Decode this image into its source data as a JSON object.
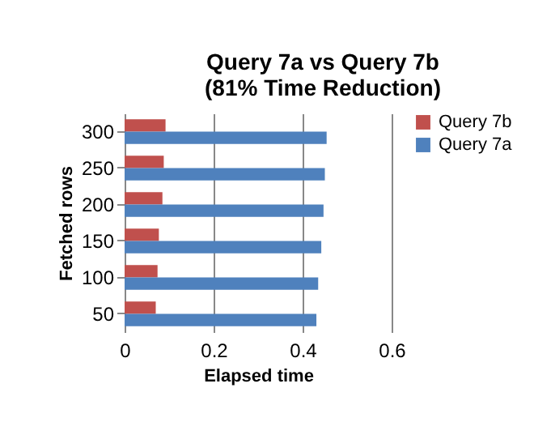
{
  "chart_data": {
    "type": "bar",
    "orientation": "horizontal",
    "title": "Query 7a vs Query 7b",
    "subtitle": "(81% Time Reduction)",
    "xlabel": "Elapsed time",
    "ylabel": "Fetched rows",
    "categories": [
      "300",
      "250",
      "200",
      "150",
      "100",
      "50"
    ],
    "series": [
      {
        "name": "Query 7b",
        "color": "#c0504d",
        "values": [
          0.092,
          0.088,
          0.085,
          0.077,
          0.074,
          0.07
        ]
      },
      {
        "name": "Query 7a",
        "color": "#4f81bd",
        "values": [
          0.454,
          0.45,
          0.447,
          0.442,
          0.435,
          0.431
        ]
      }
    ],
    "xlim": [
      0,
      0.6
    ],
    "xticks": [
      0,
      0.2,
      0.4,
      0.6
    ],
    "grid": "x",
    "legend": "right"
  }
}
